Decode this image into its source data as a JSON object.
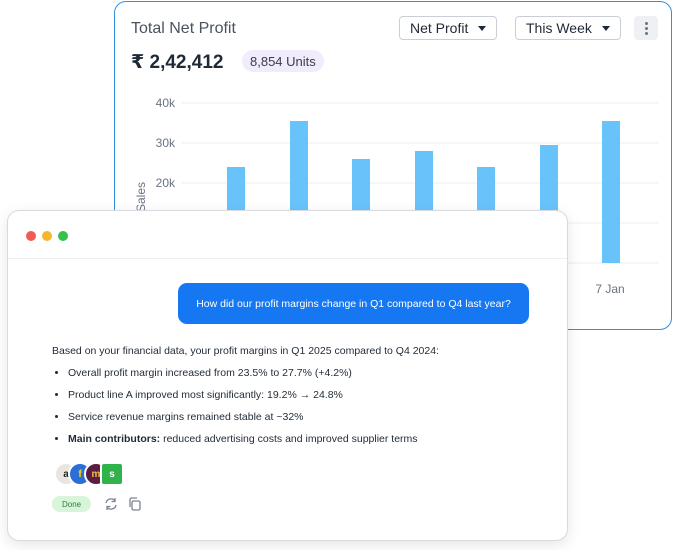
{
  "dashboard": {
    "title": "Total Net Profit",
    "metric_dropdown": "Net Profit",
    "range_dropdown": "This Week",
    "amount": "₹ 2,42,412",
    "units_badge": "8,854 Units",
    "menu_icon": "more-vertical-icon",
    "accent_color": "#2f8fe0"
  },
  "chart_data": {
    "type": "bar",
    "ylabel": "Sales",
    "y_ticks": [
      "40k",
      "30k",
      "20k"
    ],
    "ylim": [
      0,
      40000
    ],
    "visible_x_label": "7 Jan",
    "values": [
      24000,
      35500,
      26000,
      28000,
      24000,
      29500,
      35500
    ],
    "bar_color": "#69c3fb",
    "grid": true
  },
  "chat": {
    "window_controls": [
      "close",
      "minimize",
      "maximize"
    ],
    "question": "How did our profit margins change in Q1 compared to Q4 last year?",
    "answer_lead": "Based on your financial data, your profit margins in Q1 2025 compared to Q4 2024:",
    "bullets": [
      {
        "bold": "",
        "text": "Overall profit margin increased from 23.5% to 27.7% (+4.2%)"
      },
      {
        "bold": "",
        "text": "Product line A improved most significantly: 19.2% → 24.8%"
      },
      {
        "bold": "",
        "text": "Service revenue margins remained stable at ~32%"
      },
      {
        "bold": "Main contributors:",
        "text": " reduced advertising costs and improved supplier terms"
      }
    ],
    "sources": [
      "amazon-icon",
      "flipkart-icon",
      "meesho-icon",
      "shopify-icon"
    ],
    "source_letters": [
      "a",
      "f",
      "m",
      "s"
    ],
    "status": "Done",
    "actions": [
      "regenerate-icon",
      "copy-icon"
    ],
    "bubble_color": "#1677f2"
  }
}
